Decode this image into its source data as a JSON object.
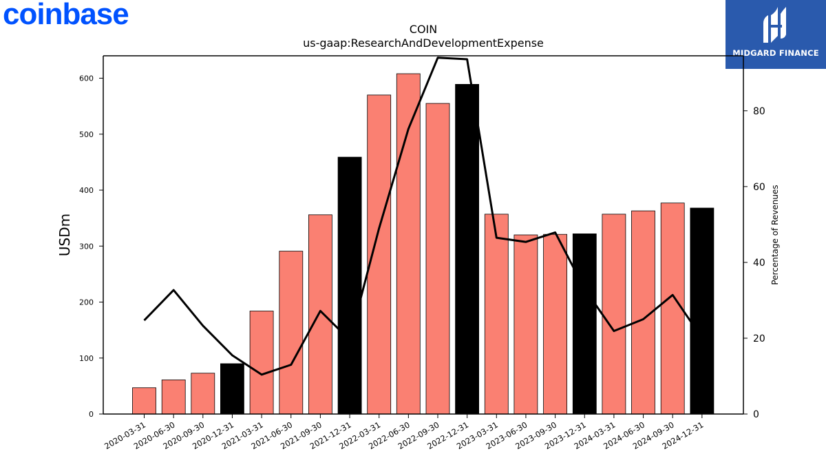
{
  "brand": {
    "company_logo_text": "coinbase",
    "publisher_logo_text": "MIDGARD FINANCE",
    "company_color": "#0052ff",
    "publisher_color": "#2a5aad"
  },
  "chart_data": {
    "type": "bar",
    "title": "COIN",
    "subtitle": "us-gaap:ResearchAndDevelopmentExpense",
    "ylabel": "USDm",
    "y2label": "Percentage of Revenues",
    "ylim": [
      0,
      640
    ],
    "y2lim": [
      0,
      94.5
    ],
    "yticks": [
      0,
      100,
      200,
      300,
      400,
      500,
      600
    ],
    "y2ticks": [
      0,
      20,
      40,
      60,
      80
    ],
    "categories": [
      "2020-03-31",
      "2020-06-30",
      "2020-09-30",
      "2020-12-31",
      "2021-03-31",
      "2021-06-30",
      "2021-09-30",
      "2021-12-31",
      "2022-03-31",
      "2022-06-30",
      "2022-09-30",
      "2022-12-31",
      "2023-03-31",
      "2023-06-30",
      "2023-09-30",
      "2023-12-31",
      "2024-03-31",
      "2024-06-30",
      "2024-09-30",
      "2024-12-31"
    ],
    "series": [
      {
        "type": "bar",
        "values": [
          47,
          61,
          73,
          90,
          184,
          291,
          356,
          459,
          570,
          608,
          555,
          589,
          357,
          320,
          321,
          322,
          357,
          363,
          377,
          368
        ]
      },
      {
        "type": "line",
        "axis": "right",
        "color": "#000000",
        "values": [
          24.7,
          32.7,
          23.3,
          15.5,
          10.4,
          13.0,
          27.2,
          19.5,
          49.0,
          75.2,
          94.0,
          93.6,
          46.5,
          45.4,
          47.9,
          33.0,
          21.9,
          25.0,
          31.4,
          20.0
        ]
      }
    ],
    "bar_colors": {
      "quarter": "#fa8072",
      "year_end": "#000000"
    },
    "grid": false,
    "legend": "none"
  }
}
